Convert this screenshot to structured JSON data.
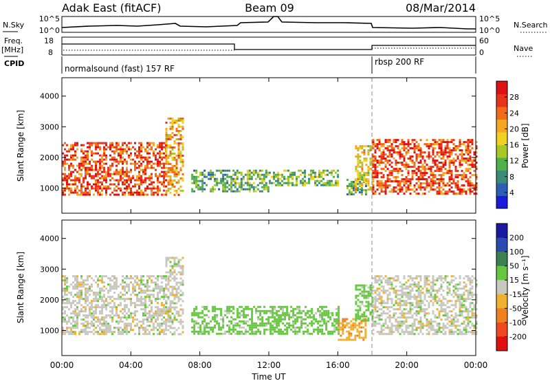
{
  "header": {
    "title_left": "Adak East (fitACF)",
    "title_center": "Beam 09",
    "title_right": "08/Mar/2014"
  },
  "top_panels": {
    "nsky_label": "N.Sky",
    "nsky_ticks": [
      "10^5",
      "10^0"
    ],
    "nsearch_label": "N.Search",
    "nsearch_ticks": [
      "10^5",
      "10^0"
    ],
    "freq_label_1": "Freq.",
    "freq_label_2": "[MHz]",
    "freq_ticks": [
      "18",
      "8"
    ],
    "nave_label": "Nave",
    "nave_ticks": [
      "60",
      "0"
    ],
    "cpid_label": "CPID",
    "cpid_segments": [
      {
        "label": "normalsound (fast) 157 RF",
        "start_hour": 0
      },
      {
        "label": "rbsp 200 RF",
        "start_hour": 18
      }
    ]
  },
  "axes": {
    "xlabel": "Time UT",
    "xticks": [
      "00:00",
      "04:00",
      "08:00",
      "12:00",
      "16:00",
      "20:00",
      "00:00"
    ],
    "ylabel": "Slant Range [km]",
    "yticks": [
      "1000",
      "2000",
      "3000",
      "4000"
    ]
  },
  "colorbars": {
    "power": {
      "label": "Power [dB]",
      "ticks": [
        "4",
        "8",
        "12",
        "16",
        "20",
        "24",
        "28"
      ],
      "colors": [
        "#1a1adb",
        "#2c5fb4",
        "#3a8c78",
        "#52b04a",
        "#a8c828",
        "#f0d020",
        "#f5a623",
        "#f26a1a",
        "#e8321a",
        "#dd1111"
      ]
    },
    "velocity": {
      "label": "Velocity [m s⁻¹]",
      "ticks": [
        "200",
        "100",
        "50",
        "15",
        "-15",
        "-50",
        "-100",
        "-200"
      ],
      "colors": [
        "#1a1aa0",
        "#2a4ab0",
        "#3a8050",
        "#66c840",
        "#c8c8c0",
        "#f0b030",
        "#f08020",
        "#f04820",
        "#e01010"
      ]
    }
  },
  "chart_data": [
    {
      "type": "heatmap",
      "title": "Power",
      "xlabel": "Time UT",
      "ylabel": "Slant Range [km]",
      "xlim": [
        0,
        24
      ],
      "ylim": [
        180,
        4600
      ],
      "regions": [
        {
          "t": [
            0,
            6
          ],
          "r": [
            800,
            2500
          ],
          "value": 26
        },
        {
          "t": [
            6,
            7
          ],
          "r": [
            800,
            3300
          ],
          "value": 20
        },
        {
          "t": [
            7.5,
            10
          ],
          "r": [
            900,
            1600
          ],
          "value": 10
        },
        {
          "t": [
            10,
            12
          ],
          "r": [
            900,
            1600
          ],
          "value": 12
        },
        {
          "t": [
            12,
            16
          ],
          "r": [
            1100,
            1600
          ],
          "value": 12
        },
        {
          "t": [
            16.5,
            17.6
          ],
          "r": [
            800,
            1300
          ],
          "value": 10
        },
        {
          "t": [
            17,
            18
          ],
          "r": [
            900,
            2400
          ],
          "value": 18
        },
        {
          "t": [
            18,
            24
          ],
          "r": [
            800,
            2600
          ],
          "value": 26
        }
      ]
    },
    {
      "type": "heatmap",
      "title": "Velocity",
      "xlabel": "Time UT",
      "ylabel": "Slant Range [km]",
      "xlim": [
        0,
        24
      ],
      "ylim": [
        180,
        4600
      ],
      "regions": [
        {
          "t": [
            0,
            6
          ],
          "r": [
            900,
            2800
          ],
          "value": 0
        },
        {
          "t": [
            6,
            7
          ],
          "r": [
            900,
            3400
          ],
          "value": 0
        },
        {
          "t": [
            7.5,
            16
          ],
          "r": [
            900,
            1800
          ],
          "value": 30
        },
        {
          "t": [
            16,
            17.6
          ],
          "r": [
            700,
            1400
          ],
          "value": -40
        },
        {
          "t": [
            17,
            18
          ],
          "r": [
            1300,
            2500
          ],
          "value": 30
        },
        {
          "t": [
            18,
            24
          ],
          "r": [
            900,
            2800
          ],
          "value": 0
        }
      ]
    }
  ]
}
